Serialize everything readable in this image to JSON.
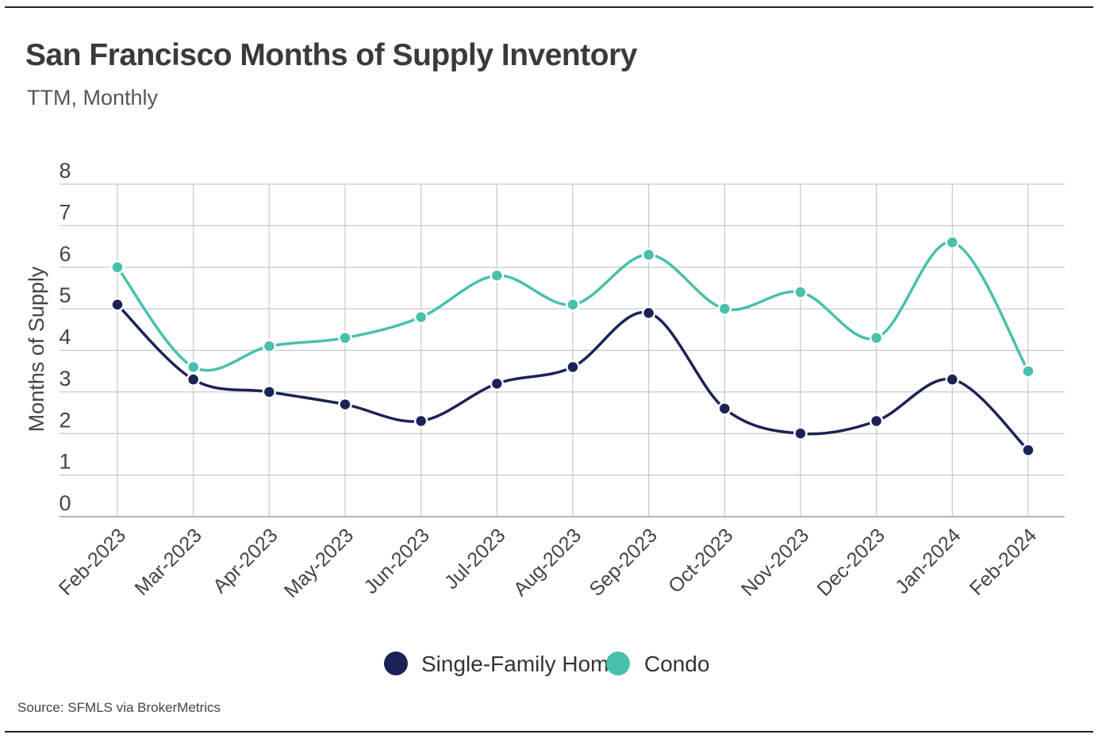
{
  "header": {
    "title": "San Francisco Months of Supply Inventory",
    "subtitle": "TTM, Monthly"
  },
  "footer": {
    "source": "Source:  SFMLS via BrokerMetrics"
  },
  "colors": {
    "single_family": "#1b2356",
    "condo": "#49c0ab",
    "grid": "#c8c8c8",
    "axis": "#888888"
  },
  "chart_data": {
    "type": "line",
    "title": "San Francisco Months of Supply Inventory",
    "subtitle": "TTM, Monthly",
    "xlabel": "",
    "ylabel": "Months of Supply",
    "ylim": [
      0,
      8
    ],
    "yticks": [
      0,
      1,
      2,
      3,
      4,
      5,
      6,
      7,
      8
    ],
    "grid": true,
    "smooth": true,
    "legend_position": "bottom-center",
    "categories": [
      "Feb-2023",
      "Mar-2023",
      "Apr-2023",
      "May-2023",
      "Jun-2023",
      "Jul-2023",
      "Aug-2023",
      "Sep-2023",
      "Oct-2023",
      "Nov-2023",
      "Dec-2023",
      "Jan-2024",
      "Feb-2024"
    ],
    "series": [
      {
        "name": "Single-Family Home",
        "color_key": "single_family",
        "values": [
          5.1,
          3.3,
          3.0,
          2.7,
          2.3,
          3.2,
          3.6,
          4.9,
          2.6,
          2.0,
          2.3,
          3.3,
          1.6
        ]
      },
      {
        "name": "Condo",
        "color_key": "condo",
        "values": [
          6.0,
          3.6,
          4.1,
          4.3,
          4.8,
          5.8,
          5.1,
          6.3,
          5.0,
          5.4,
          4.3,
          6.6,
          3.5
        ]
      }
    ]
  }
}
